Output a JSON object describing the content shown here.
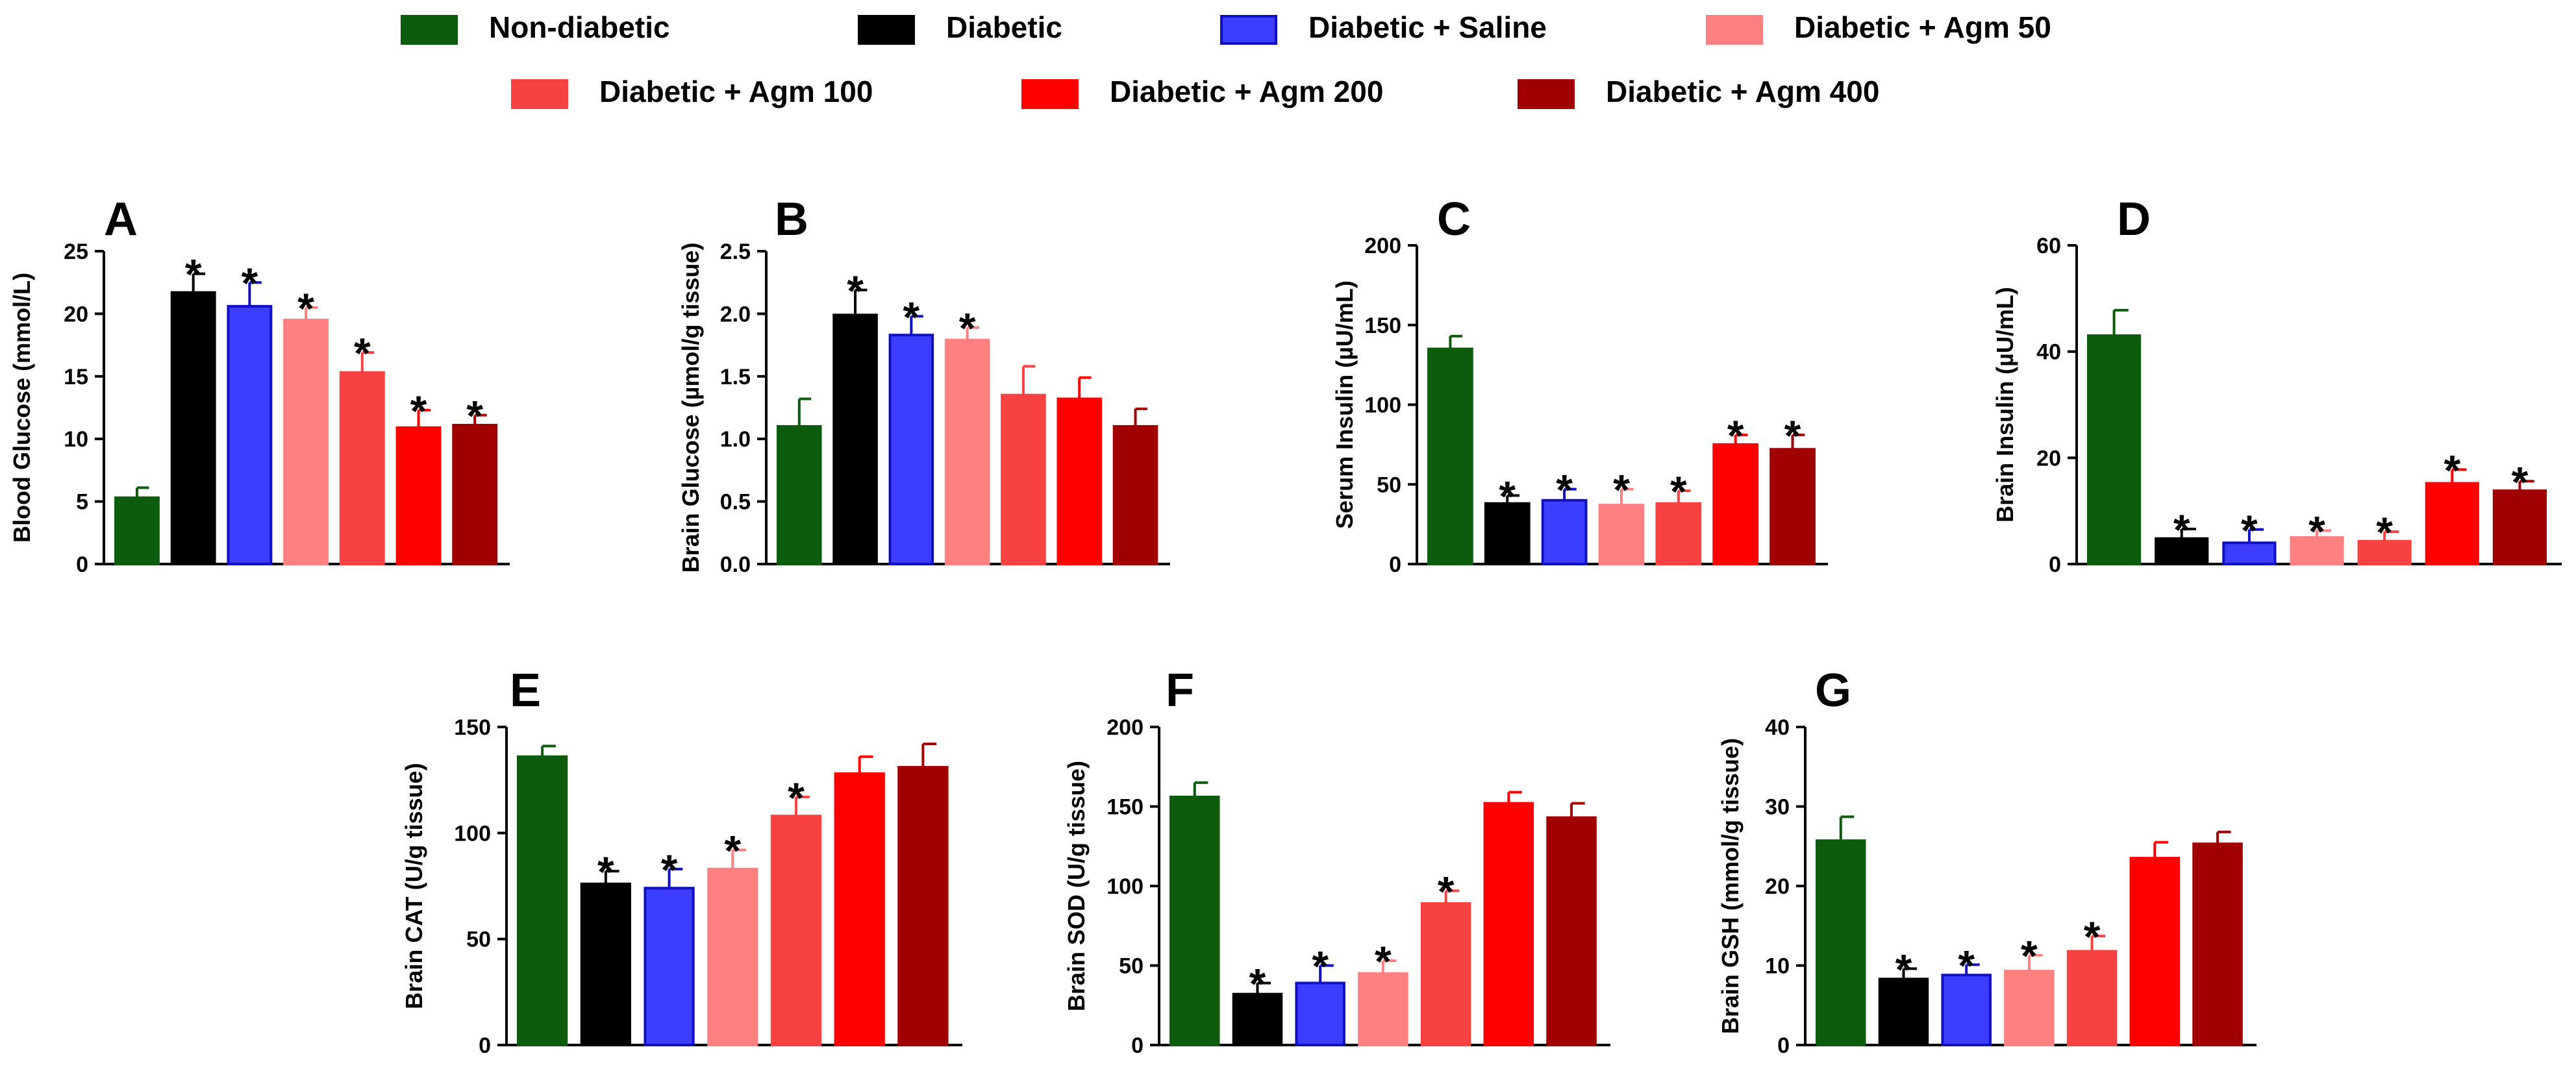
{
  "legend": [
    {
      "label": "Non-diabetic",
      "color": "#0d5c0d",
      "border": "#0d5c0d"
    },
    {
      "label": "Diabetic",
      "color": "#000000",
      "border": "#000000"
    },
    {
      "label": "Diabetic + Saline",
      "color": "#3d3dff",
      "border": "#1010c0"
    },
    {
      "label": "Diabetic + Agm 50",
      "color": "#ff8080",
      "border": "#ff8080"
    },
    {
      "label": "Diabetic +  Agm 100",
      "color": "#f84242",
      "border": "#f84242"
    },
    {
      "label": "Diabetic + Agm 200",
      "color": "#ff0000",
      "border": "#ff0000"
    },
    {
      "label": "Diabetic + Agm 400",
      "color": "#a00000",
      "border": "#a00000"
    }
  ],
  "star": "*",
  "chart_data": [
    {
      "type": "bar",
      "panel": "A",
      "ylabel": "Blood Glucose (mmol/L)",
      "ylim": [
        0,
        25
      ],
      "yticks": [
        "0",
        "5",
        "10",
        "15",
        "20",
        "25"
      ],
      "values": [
        5.3,
        21.7,
        20.6,
        19.5,
        15.3,
        10.9,
        11.1
      ],
      "errors": [
        0.8,
        1.5,
        1.9,
        1.0,
        1.6,
        1.4,
        0.8
      ],
      "significant": [
        false,
        true,
        true,
        true,
        true,
        true,
        true
      ]
    },
    {
      "type": "bar",
      "panel": "B",
      "ylabel": "Brain Glucose (µmol/g tissue)",
      "ylim": [
        0,
        2.5
      ],
      "yticks": [
        "0.0",
        "0.5",
        "1.0",
        "1.5",
        "2.0",
        "2.5"
      ],
      "values": [
        1.1,
        1.99,
        1.83,
        1.79,
        1.35,
        1.32,
        1.1
      ],
      "errors": [
        0.22,
        0.2,
        0.15,
        0.1,
        0.23,
        0.17,
        0.14
      ],
      "significant": [
        false,
        true,
        true,
        true,
        false,
        false,
        false
      ]
    },
    {
      "type": "bar",
      "panel": "C",
      "ylabel": "Serum Insulin (µU/mL)",
      "ylim": [
        0,
        200
      ],
      "yticks": [
        "0",
        "50",
        "100",
        "150",
        "200"
      ],
      "values": [
        135,
        38,
        40,
        37,
        38,
        75,
        72
      ],
      "errors": [
        8,
        5,
        7,
        10,
        8,
        6,
        9
      ],
      "significant": [
        false,
        true,
        true,
        true,
        true,
        true,
        true
      ]
    },
    {
      "type": "bar",
      "panel": "D",
      "ylabel": "Brain Insulin (µU/mL)",
      "ylim": [
        0,
        60
      ],
      "yticks": [
        "0",
        "20",
        "40",
        "60"
      ],
      "values": [
        43,
        4.8,
        4,
        5,
        4.3,
        15.2,
        13.8
      ],
      "errors": [
        4.8,
        1.8,
        2.5,
        1.3,
        1.8,
        2.6,
        1.8
      ],
      "significant": [
        false,
        true,
        true,
        true,
        true,
        true,
        true
      ]
    },
    {
      "type": "bar",
      "panel": "E",
      "ylabel": "Brain CAT (U/g tissue)",
      "ylim": [
        0,
        150
      ],
      "yticks": [
        "0",
        "50",
        "100",
        "150"
      ],
      "values": [
        136,
        76,
        74,
        83,
        108,
        128,
        131
      ],
      "errors": [
        5,
        6,
        9,
        9,
        9,
        8,
        11
      ],
      "significant": [
        false,
        true,
        true,
        true,
        true,
        false,
        false
      ]
    },
    {
      "type": "bar",
      "panel": "F",
      "ylabel": "Brain SOD (U/g tissue)",
      "ylim": [
        0,
        200
      ],
      "yticks": [
        "0",
        "50",
        "100",
        "150",
        "200"
      ],
      "values": [
        156,
        32,
        39,
        45,
        89,
        152,
        143
      ],
      "errors": [
        9,
        7,
        11,
        8,
        8,
        7,
        9
      ],
      "significant": [
        false,
        true,
        true,
        true,
        true,
        false,
        false
      ]
    },
    {
      "type": "bar",
      "panel": "G",
      "ylabel": "Brain GSH (mmol/g tissue)",
      "ylim": [
        0,
        40
      ],
      "yticks": [
        "0",
        "10",
        "20",
        "30",
        "40"
      ],
      "values": [
        25.7,
        8.3,
        8.8,
        9.3,
        11.8,
        23.5,
        25.3
      ],
      "errors": [
        3,
        1.3,
        1.3,
        2,
        1.9,
        2,
        1.5
      ],
      "significant": [
        false,
        true,
        true,
        true,
        true,
        false,
        false
      ]
    }
  ]
}
